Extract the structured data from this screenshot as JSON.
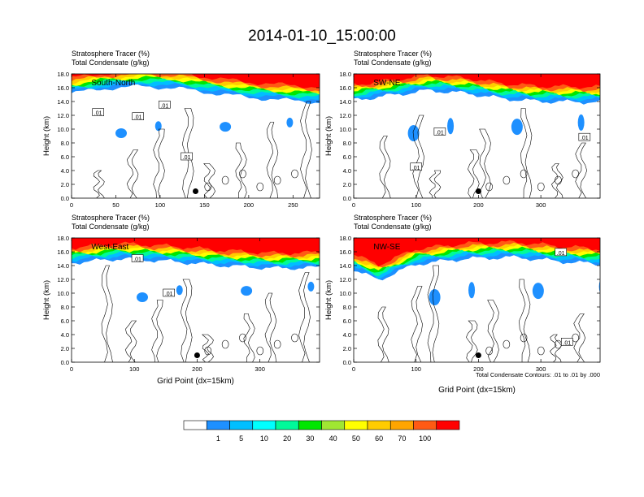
{
  "figure": {
    "title": "2014-01-10_15:00:00",
    "footnote": "Total Condensate Contours: .01 to .01 by .000"
  },
  "colors": {
    "levels": [
      "#ffffff",
      "#1e90ff",
      "#00bfff",
      "#00ffff",
      "#00fa9a",
      "#00e600",
      "#a0e632",
      "#ffff00",
      "#ffcc00",
      "#ffa500",
      "#ff5a14",
      "#ff0000"
    ],
    "contour": "#000000"
  },
  "colorbar": {
    "labels": [
      "1",
      "5",
      "10",
      "20",
      "30",
      "40",
      "50",
      "60",
      "70",
      "100"
    ]
  },
  "chart_data": [
    {
      "type": "heatmap",
      "panel": "South-North",
      "title_line1": "Stratosphere Tracer   (%)",
      "title_line2": "Total Condensate   (g/kg)",
      "xlabel": "",
      "ylabel": "Height (km)",
      "xlim": [
        0,
        280
      ],
      "ylim": [
        0,
        18
      ],
      "xticks": [
        0,
        50,
        100,
        150,
        200,
        250
      ],
      "yticks": [
        "0.0",
        "2.0",
        "4.0",
        "6.0",
        "8.0",
        "10.0",
        "12.0",
        "14.0",
        "16.0",
        "18.0"
      ],
      "contour_labels": [
        ".01",
        ".01",
        ".01",
        ".01"
      ],
      "contour_label_pos": [
        [
          30,
          12.4
        ],
        [
          75,
          11.8
        ],
        [
          105,
          13.5
        ],
        [
          130,
          6.0
        ]
      ],
      "tracer_base": [
        [
          0,
          15.8
        ],
        [
          40,
          16.5
        ],
        [
          80,
          16.8
        ],
        [
          120,
          16.5
        ],
        [
          160,
          15.8
        ],
        [
          200,
          15.2
        ],
        [
          240,
          14.8
        ],
        [
          280,
          14.5
        ]
      ],
      "marker": [
        140,
        1.0
      ]
    },
    {
      "type": "heatmap",
      "panel": "SW-NE",
      "title_line1": "Stratosphere Tracer   (%)",
      "title_line2": "Total Condensate   (g/kg)",
      "xlabel": "",
      "ylabel": "Height (km)",
      "xlim": [
        0,
        395
      ],
      "ylim": [
        0,
        18
      ],
      "xticks": [
        0,
        100,
        200,
        300
      ],
      "yticks": [
        "0.0",
        "2.0",
        "4.0",
        "6.0",
        "8.0",
        "10.0",
        "12.0",
        "14.0",
        "16.0",
        "18.0"
      ],
      "contour_labels": [
        ".01",
        ".01",
        ".01"
      ],
      "contour_label_pos": [
        [
          138,
          9.6
        ],
        [
          100,
          4.5
        ],
        [
          370,
          8.8
        ]
      ],
      "tracer_base": [
        [
          0,
          14.8
        ],
        [
          60,
          15.5
        ],
        [
          120,
          16.2
        ],
        [
          180,
          15.8
        ],
        [
          240,
          15.0
        ],
        [
          300,
          14.6
        ],
        [
          395,
          14.5
        ]
      ],
      "marker": [
        200,
        1.0
      ]
    },
    {
      "type": "heatmap",
      "panel": "West-East",
      "title_line1": "Stratosphere Tracer   (%)",
      "title_line2": "Total Condensate   (g/kg)",
      "xlabel": "Grid Point (dx=15km)",
      "ylabel": "Height (km)",
      "xlim": [
        0,
        395
      ],
      "ylim": [
        0,
        18
      ],
      "xticks": [
        0,
        100,
        200,
        300
      ],
      "yticks": [
        "0.0",
        "2.0",
        "4.0",
        "6.0",
        "8.0",
        "10.0",
        "12.0",
        "14.0",
        "16.0",
        "18.0"
      ],
      "contour_labels": [
        ".01",
        ".01"
      ],
      "contour_label_pos": [
        [
          105,
          15.0
        ],
        [
          155,
          10.0
        ]
      ],
      "tracer_base": [
        [
          0,
          15.0
        ],
        [
          80,
          15.6
        ],
        [
          160,
          15.2
        ],
        [
          240,
          14.6
        ],
        [
          320,
          14.2
        ],
        [
          395,
          14.3
        ]
      ],
      "marker": [
        200,
        1.0
      ]
    },
    {
      "type": "heatmap",
      "panel": "NW-SE",
      "title_line1": "Stratosphere Tracer   (%)",
      "title_line2": "Total Condensate   (g/kg)",
      "xlabel": "Grid Point (dx=15km)",
      "ylabel": "Height (km)",
      "xlim": [
        0,
        395
      ],
      "ylim": [
        0,
        18
      ],
      "xticks": [
        0,
        100,
        200,
        300
      ],
      "yticks": [
        "0.0",
        "2.0",
        "4.0",
        "6.0",
        "8.0",
        "10.0",
        "12.0",
        "14.0",
        "16.0",
        "18.0"
      ],
      "contour_labels": [
        ".01",
        ".01"
      ],
      "contour_label_pos": [
        [
          332,
          15.9
        ],
        [
          342,
          2.9
        ]
      ],
      "tracer_base": [
        [
          0,
          14.0
        ],
        [
          40,
          12.5
        ],
        [
          100,
          14.8
        ],
        [
          180,
          15.6
        ],
        [
          260,
          15.8
        ],
        [
          330,
          15.2
        ],
        [
          395,
          14.8
        ]
      ],
      "marker": [
        200,
        1.0
      ]
    }
  ]
}
